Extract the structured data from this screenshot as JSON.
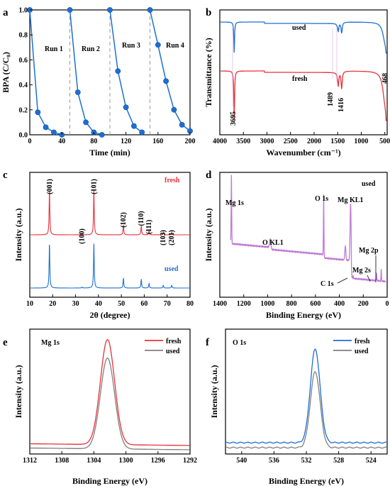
{
  "chart_data": [
    {
      "panel": "a",
      "type": "line",
      "xlabel": "Time (min)",
      "ylabel": "BPA (C/C₀)",
      "xlim": [
        0,
        200
      ],
      "ylim": [
        0,
        1.0
      ],
      "xticks": [
        "0",
        "40",
        "80",
        "120",
        "160",
        "200"
      ],
      "yticks": [
        "0.0",
        "0.2",
        "0.4",
        "0.6",
        "0.8",
        "1.0"
      ],
      "dividers": [
        50,
        100,
        150
      ],
      "annotations": [
        "Run 1",
        "Run 2",
        "Run 3",
        "Run 4"
      ],
      "color": "#1f6fd1",
      "series": [
        {
          "x": [
            0,
            10,
            20,
            30,
            40
          ],
          "y": [
            1.0,
            0.18,
            0.06,
            0.02,
            0.0
          ]
        },
        {
          "x": [
            50,
            60,
            70,
            80,
            90
          ],
          "y": [
            1.0,
            0.34,
            0.1,
            0.02,
            0.0
          ]
        },
        {
          "x": [
            100,
            110,
            120,
            130,
            140
          ],
          "y": [
            1.0,
            0.51,
            0.22,
            0.07,
            0.02
          ]
        },
        {
          "x": [
            150,
            160,
            170,
            180,
            190,
            200
          ],
          "y": [
            1.0,
            0.72,
            0.43,
            0.2,
            0.08,
            0.03
          ]
        }
      ]
    },
    {
      "panel": "b",
      "type": "line",
      "xlabel": "Wavenumber (cm⁻¹)",
      "ylabel": "Transmittance (%)",
      "xlim": [
        4000,
        450
      ],
      "xticks": [
        "4000",
        "3500",
        "3000",
        "2500",
        "2000",
        "1500",
        "1000",
        "500"
      ],
      "series": [
        {
          "name": "used",
          "color": "#1f6fd1"
        },
        {
          "name": "fresh",
          "color": "#e8323a"
        }
      ],
      "peaks": [
        "3695",
        "1489",
        "1416",
        "468"
      ]
    },
    {
      "panel": "c",
      "type": "line",
      "xlabel": "2θ (degree)",
      "ylabel": "Intensity (a.u.)",
      "xlim": [
        10,
        80
      ],
      "xticks": [
        "10",
        "20",
        "30",
        "40",
        "50",
        "60",
        "70",
        "80"
      ],
      "series": [
        {
          "name": "fresh",
          "color": "#e8323a"
        },
        {
          "name": "used",
          "color": "#1f6fd1"
        }
      ],
      "reflections": [
        {
          "label": "(001)",
          "x": 18.6
        },
        {
          "label": "(100)",
          "x": 32.8
        },
        {
          "label": "(101)",
          "x": 38.0
        },
        {
          "label": "(102)",
          "x": 50.9
        },
        {
          "label": "(110)",
          "x": 58.7
        },
        {
          "label": "(111)",
          "x": 62.1
        },
        {
          "label": "(103)",
          "x": 68.3
        },
        {
          "label": "(201)",
          "x": 72.0
        }
      ]
    },
    {
      "panel": "d",
      "type": "line",
      "xlabel": "Binding Energy (eV)",
      "ylabel": "Intensity (a.u.)",
      "xlim": [
        1400,
        0
      ],
      "xticks": [
        "1400",
        "1200",
        "1000",
        "800",
        "600",
        "400",
        "200",
        "0"
      ],
      "series": [
        {
          "name": "used",
          "color": "#c07ad6"
        }
      ],
      "labels": [
        "Mg 1s",
        "O KL1",
        "O 1s",
        "Mg KL1",
        "Mg 2p",
        "Mg 2s",
        "C 1s"
      ]
    },
    {
      "panel": "e",
      "type": "line",
      "title": "Mg 1s",
      "xlabel": "Binding Energy (eV)",
      "ylabel": "Intensity (a.u.)",
      "xlim": [
        1312,
        1292
      ],
      "xticks": [
        "1312",
        "1308",
        "1304",
        "1300",
        "1296",
        "1292"
      ],
      "series": [
        {
          "name": "fresh",
          "color": "#e8323a"
        },
        {
          "name": "used",
          "color": "#808080"
        }
      ]
    },
    {
      "panel": "f",
      "type": "line",
      "title": "O 1s",
      "xlabel": "Binding Energy (eV)",
      "ylabel": "Intensity (a.u.)",
      "xlim": [
        542,
        522
      ],
      "xticks": [
        "540",
        "536",
        "532",
        "528",
        "524"
      ],
      "series": [
        {
          "name": "fresh",
          "color": "#1f6fd1"
        },
        {
          "name": "used",
          "color": "#808080"
        }
      ]
    }
  ]
}
